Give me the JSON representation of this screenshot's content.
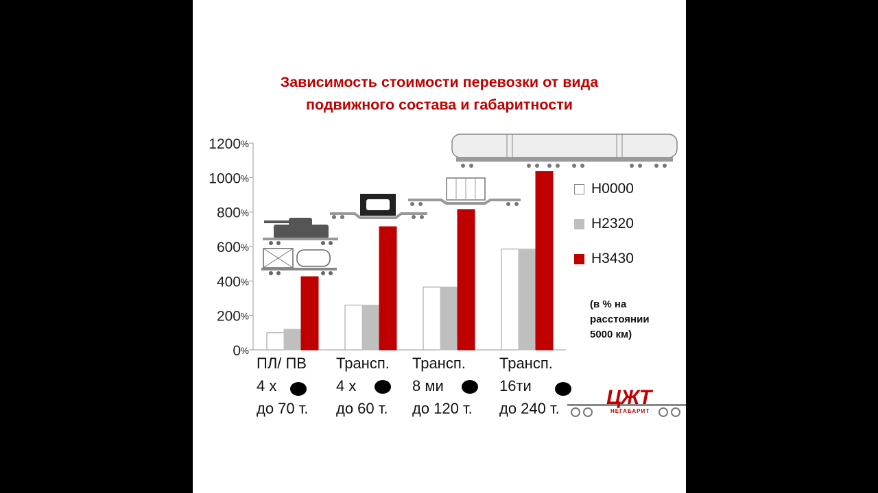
{
  "title": {
    "line1": "Зависимость стоимости перевозки от вида",
    "line2": "подвижного состава  и габаритности"
  },
  "chart_data": {
    "type": "bar",
    "title": "Зависимость стоимости перевозки от вида подвижного состава  и габаритности",
    "ylim": [
      0,
      1200
    ],
    "yticks": [
      0,
      200,
      400,
      600,
      800,
      1000,
      1200
    ],
    "ytick_unit": "%",
    "grid": false,
    "legend": "right",
    "categories": [
      [
        "ПЛ/ ПВ",
        "4 х",
        "до 70 т."
      ],
      [
        "Трансп.",
        "4 х",
        "до 60 т."
      ],
      [
        "Трансп.",
        "8 ми",
        "до 120 т."
      ],
      [
        "Трансп.",
        "16ти",
        "до 240 т."
      ]
    ],
    "series": [
      {
        "name": "Н0000",
        "color": "#ffffff",
        "values": [
          100,
          260,
          365,
          585
        ]
      },
      {
        "name": "Н2320",
        "color": "#bfbfbf",
        "values": [
          120,
          260,
          365,
          585
        ]
      },
      {
        "name": "Н3430",
        "color": "#c00000",
        "values": [
          425,
          715,
          815,
          1035
        ]
      }
    ],
    "annotation": [
      "(в % на",
      "расстоянии",
      "5000 км)"
    ]
  },
  "icons": [
    "tank-on-flatcar-icon",
    "container-flatcar-icon",
    "transformer-on-transporter-icon",
    "tank-car-transporter-icon",
    "long-vessel-transporter-icon",
    "wheel-icon"
  ],
  "logo": {
    "main": "ЦЖТ",
    "sub": "НЕГАБАРИТ"
  }
}
